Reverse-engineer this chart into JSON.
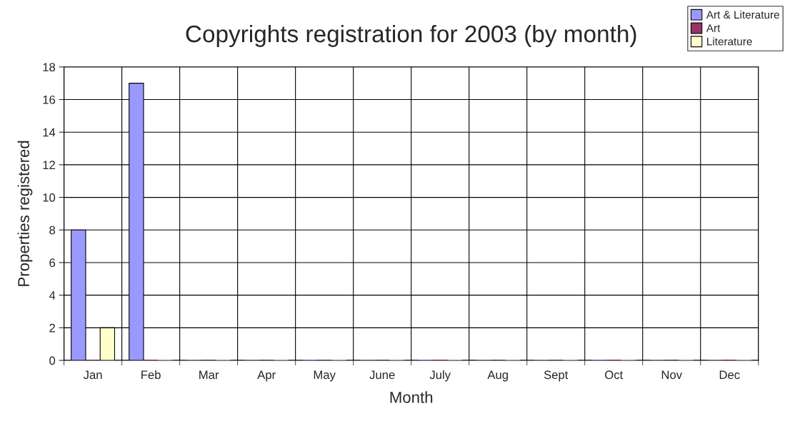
{
  "chart_data": {
    "type": "bar",
    "title": "Copyrights registration for 2003 (by month)",
    "xlabel": "Month",
    "ylabel": "Properties registered",
    "categories": [
      "Jan",
      "Feb",
      "Mar",
      "Apr",
      "May",
      "June",
      "July",
      "Aug",
      "Sept",
      "Oct",
      "Nov",
      "Dec"
    ],
    "series": [
      {
        "name": "Art & Literature",
        "color": "#9999ff",
        "values": [
          8,
          17,
          0,
          0,
          0,
          0,
          0,
          0,
          0,
          0,
          0,
          0
        ]
      },
      {
        "name": "Art",
        "color": "#993366",
        "values": [
          0,
          0,
          0,
          0,
          0,
          0,
          0,
          0,
          0,
          0,
          0,
          0
        ]
      },
      {
        "name": "Literature",
        "color": "#ffffcc",
        "values": [
          2,
          0,
          0,
          0,
          0,
          0,
          0,
          0,
          0,
          0,
          0,
          0
        ]
      }
    ],
    "ylim": [
      0,
      18
    ],
    "yticks": [
      0,
      2,
      4,
      6,
      8,
      10,
      12,
      14,
      16,
      18
    ],
    "grid": true,
    "legend": "top right"
  }
}
